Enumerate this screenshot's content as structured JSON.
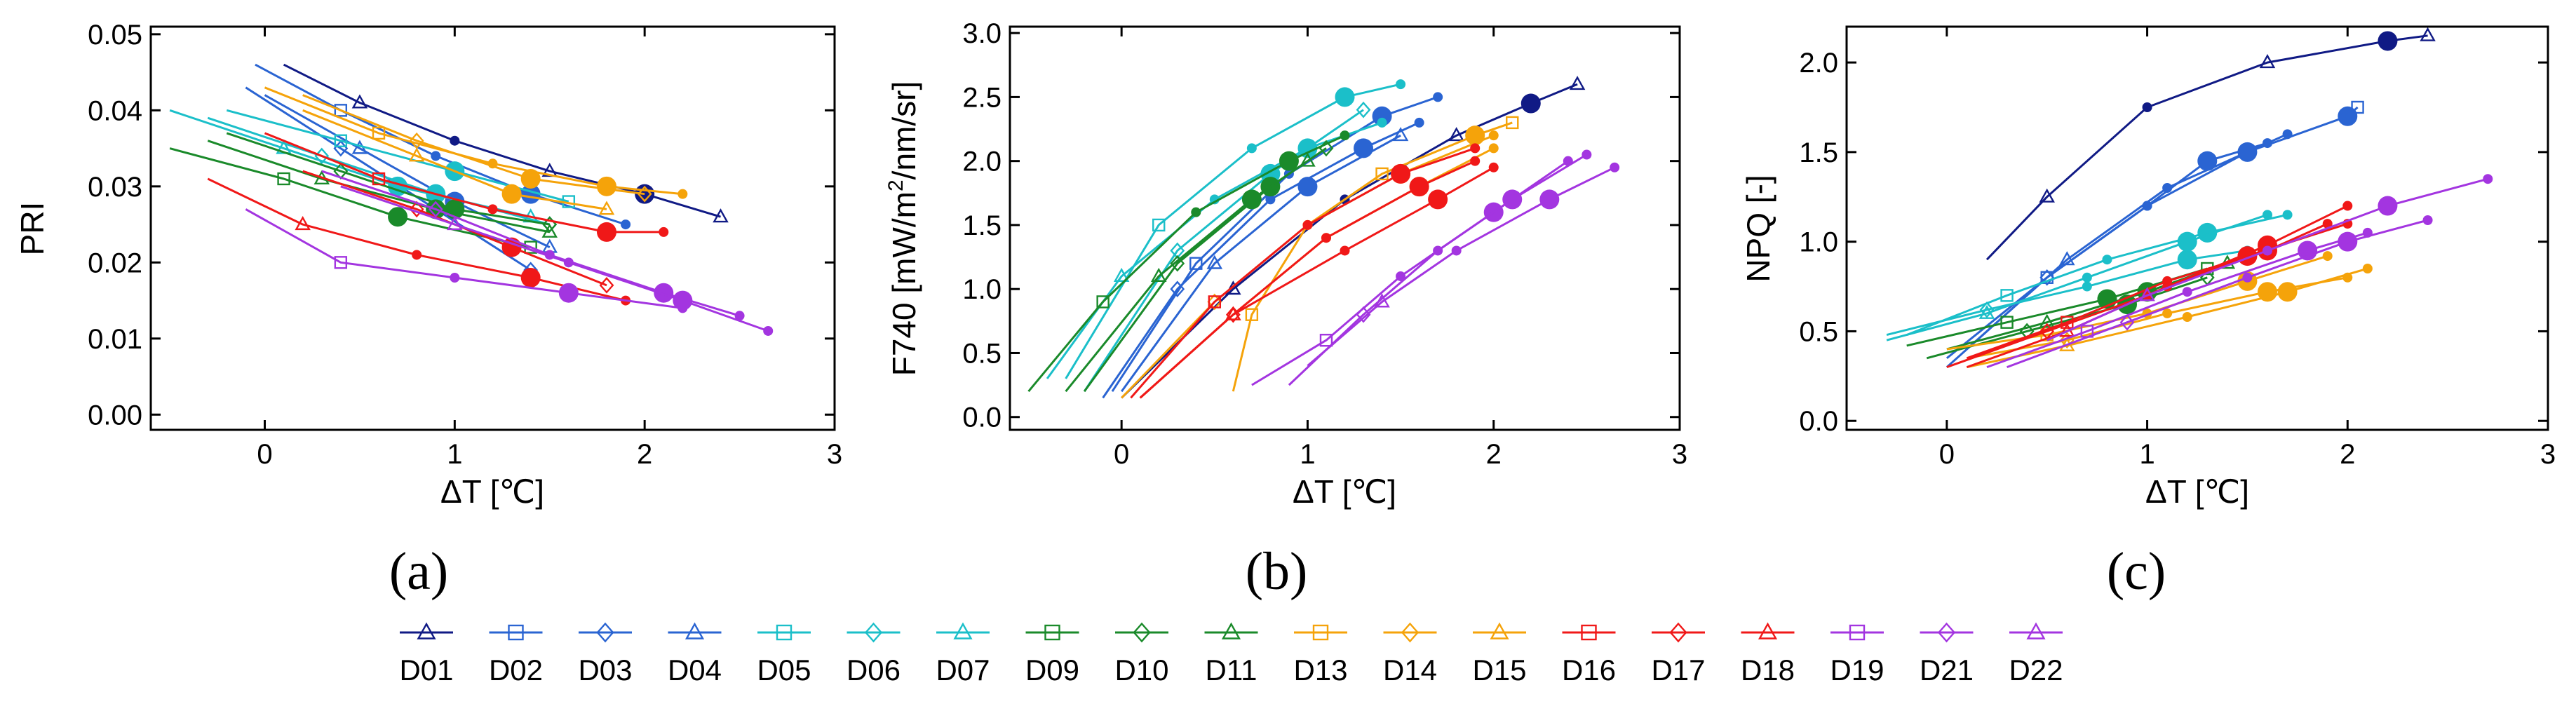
{
  "figure": {
    "legend": [
      {
        "name": "D01",
        "color": "#101a85",
        "marker": "triangle"
      },
      {
        "name": "D02",
        "color": "#2a64d2",
        "marker": "square"
      },
      {
        "name": "D03",
        "color": "#2a64d2",
        "marker": "diamond"
      },
      {
        "name": "D04",
        "color": "#2a64d2",
        "marker": "triangle"
      },
      {
        "name": "D05",
        "color": "#1bbfc9",
        "marker": "square"
      },
      {
        "name": "D06",
        "color": "#1bbfc9",
        "marker": "diamond"
      },
      {
        "name": "D07",
        "color": "#1bbfc9",
        "marker": "triangle"
      },
      {
        "name": "D09",
        "color": "#1a8a2a",
        "marker": "square"
      },
      {
        "name": "D10",
        "color": "#1a8a2a",
        "marker": "diamond"
      },
      {
        "name": "D11",
        "color": "#1a8a2a",
        "marker": "triangle"
      },
      {
        "name": "D13",
        "color": "#f5a30a",
        "marker": "square"
      },
      {
        "name": "D14",
        "color": "#f5a30a",
        "marker": "diamond"
      },
      {
        "name": "D15",
        "color": "#f5a30a",
        "marker": "triangle"
      },
      {
        "name": "D16",
        "color": "#f01818",
        "marker": "square"
      },
      {
        "name": "D17",
        "color": "#f01818",
        "marker": "diamond"
      },
      {
        "name": "D18",
        "color": "#f01818",
        "marker": "triangle"
      },
      {
        "name": "D19",
        "color": "#a335e0",
        "marker": "square"
      },
      {
        "name": "D21",
        "color": "#a335e0",
        "marker": "diamond"
      },
      {
        "name": "D22",
        "color": "#a335e0",
        "marker": "triangle"
      }
    ]
  },
  "chart_data": [
    {
      "panel": "(a)",
      "type": "line",
      "xlabel": "ΔT [℃]",
      "ylabel": "PRI",
      "xlim": [
        -0.6,
        3
      ],
      "ylim": [
        -0.002,
        0.051
      ],
      "xticks": [
        0,
        1,
        2,
        3
      ],
      "xtick_labels": [
        "0",
        "1",
        "2",
        "3"
      ],
      "yticks": [
        0.0,
        0.01,
        0.02,
        0.03,
        0.04,
        0.05
      ],
      "ytick_labels": [
        "0.00",
        "0.01",
        "0.02",
        "0.03",
        "0.04",
        "0.05"
      ],
      "series": [
        {
          "name": "D01",
          "x": [
            0.1,
            0.5,
            1.0,
            1.5,
            2.0,
            2.4
          ],
          "y": [
            0.046,
            0.041,
            0.036,
            0.032,
            0.029,
            0.026
          ]
        },
        {
          "name": "D02",
          "x": [
            -0.05,
            0.4,
            0.9,
            1.4,
            1.9
          ],
          "y": [
            0.046,
            0.04,
            0.034,
            0.029,
            0.025
          ]
        },
        {
          "name": "D03",
          "x": [
            -0.1,
            0.4,
            0.9,
            1.4
          ],
          "y": [
            0.043,
            0.035,
            0.027,
            0.019
          ]
        },
        {
          "name": "D04",
          "x": [
            0.0,
            0.5,
            1.0,
            1.5
          ],
          "y": [
            0.042,
            0.035,
            0.028,
            0.022
          ]
        },
        {
          "name": "D05",
          "x": [
            -0.2,
            0.4,
            1.0,
            1.6
          ],
          "y": [
            0.04,
            0.036,
            0.032,
            0.028
          ]
        },
        {
          "name": "D06",
          "x": [
            -0.3,
            0.3,
            0.9,
            1.5
          ],
          "y": [
            0.039,
            0.034,
            0.029,
            0.025
          ]
        },
        {
          "name": "D07",
          "x": [
            -0.5,
            0.1,
            0.7,
            1.4
          ],
          "y": [
            0.04,
            0.035,
            0.03,
            0.026
          ]
        },
        {
          "name": "D09",
          "x": [
            -0.5,
            0.1,
            0.7,
            1.4
          ],
          "y": [
            0.035,
            0.031,
            0.026,
            0.022
          ]
        },
        {
          "name": "D10",
          "x": [
            -0.2,
            0.4,
            1.0,
            1.5
          ],
          "y": [
            0.037,
            0.032,
            0.027,
            0.025
          ]
        },
        {
          "name": "D11",
          "x": [
            -0.3,
            0.3,
            0.9,
            1.5
          ],
          "y": [
            0.036,
            0.031,
            0.027,
            0.024
          ]
        },
        {
          "name": "D13",
          "x": [
            0.0,
            0.6,
            1.2,
            1.8,
            2.2
          ],
          "y": [
            0.043,
            0.037,
            0.033,
            0.03,
            0.029
          ]
        },
        {
          "name": "D14",
          "x": [
            0.2,
            0.8,
            1.4,
            2.0
          ],
          "y": [
            0.042,
            0.036,
            0.031,
            0.029
          ]
        },
        {
          "name": "D15",
          "x": [
            0.2,
            0.8,
            1.3,
            1.8
          ],
          "y": [
            0.04,
            0.034,
            0.029,
            0.027
          ]
        },
        {
          "name": "D16",
          "x": [
            0.0,
            0.6,
            1.2,
            1.8,
            2.1
          ],
          "y": [
            0.037,
            0.031,
            0.027,
            0.024,
            0.024
          ]
        },
        {
          "name": "D17",
          "x": [
            0.2,
            0.8,
            1.3,
            1.8
          ],
          "y": [
            0.032,
            0.027,
            0.022,
            0.017
          ]
        },
        {
          "name": "D18",
          "x": [
            -0.3,
            0.2,
            0.8,
            1.4,
            1.9
          ],
          "y": [
            0.031,
            0.025,
            0.021,
            0.018,
            0.015
          ]
        },
        {
          "name": "D19",
          "x": [
            -0.1,
            0.4,
            1.0,
            1.6,
            2.2
          ],
          "y": [
            0.027,
            0.02,
            0.018,
            0.016,
            0.014
          ]
        },
        {
          "name": "D21",
          "x": [
            0.3,
            0.9,
            1.5,
            2.1,
            2.5
          ],
          "y": [
            0.032,
            0.027,
            0.021,
            0.016,
            0.013
          ]
        },
        {
          "name": "D22",
          "x": [
            0.4,
            1.0,
            1.6,
            2.2,
            2.65
          ],
          "y": [
            0.03,
            0.025,
            0.02,
            0.015,
            0.011
          ]
        }
      ]
    },
    {
      "panel": "(b)",
      "type": "line",
      "xlabel": "ΔT [℃]",
      "ylabel": "F740 [mW/m²/nm/sr]",
      "ylabel_main": "F740 [mW/m",
      "ylabel_sup": "2",
      "ylabel_tail": "/nm/sr]",
      "xlim": [
        -0.6,
        3
      ],
      "ylim": [
        -0.1,
        3.05
      ],
      "xticks": [
        0,
        1,
        2,
        3
      ],
      "xtick_labels": [
        "0",
        "1",
        "2",
        "3"
      ],
      "yticks": [
        0.0,
        0.5,
        1.0,
        1.5,
        2.0,
        2.5,
        3.0
      ],
      "ytick_labels": [
        "0.0",
        "0.5",
        "1.0",
        "1.5",
        "2.0",
        "2.5",
        "3.0"
      ],
      "series": [
        {
          "name": "D01",
          "x": [
            0.0,
            0.6,
            1.2,
            1.8,
            2.2,
            2.45
          ],
          "y": [
            0.15,
            1.0,
            1.7,
            2.2,
            2.45,
            2.6
          ]
        },
        {
          "name": "D02",
          "x": [
            -0.05,
            0.4,
            0.9,
            1.4,
            1.7
          ],
          "y": [
            0.2,
            1.2,
            1.9,
            2.35,
            2.5
          ]
        },
        {
          "name": "D03",
          "x": [
            -0.1,
            0.3,
            0.8,
            1.3,
            1.6
          ],
          "y": [
            0.15,
            1.0,
            1.7,
            2.1,
            2.3
          ]
        },
        {
          "name": "D04",
          "x": [
            0.0,
            0.5,
            1.0,
            1.5
          ],
          "y": [
            0.2,
            1.2,
            1.8,
            2.2
          ]
        },
        {
          "name": "D05",
          "x": [
            -0.3,
            0.2,
            0.7,
            1.2,
            1.5
          ],
          "y": [
            0.3,
            1.5,
            2.1,
            2.5,
            2.6
          ]
        },
        {
          "name": "D06",
          "x": [
            -0.2,
            0.3,
            0.8,
            1.3
          ],
          "y": [
            0.2,
            1.3,
            1.9,
            2.4
          ]
        },
        {
          "name": "D07",
          "x": [
            -0.4,
            0.0,
            0.5,
            1.0,
            1.4
          ],
          "y": [
            0.3,
            1.1,
            1.7,
            2.1,
            2.3
          ]
        },
        {
          "name": "D09",
          "x": [
            -0.5,
            -0.1,
            0.4,
            0.9,
            1.2
          ],
          "y": [
            0.2,
            0.9,
            1.6,
            2.0,
            2.2
          ]
        },
        {
          "name": "D10",
          "x": [
            -0.2,
            0.3,
            0.8,
            1.1
          ],
          "y": [
            0.2,
            1.2,
            1.8,
            2.1
          ]
        },
        {
          "name": "D11",
          "x": [
            -0.3,
            0.2,
            0.7,
            1.0
          ],
          "y": [
            0.2,
            1.1,
            1.7,
            2.0
          ]
        },
        {
          "name": "D13",
          "x": [
            0.6,
            0.7,
            1.0,
            1.4,
            1.9,
            2.1
          ],
          "y": [
            0.2,
            0.8,
            1.5,
            1.9,
            2.2,
            2.3
          ]
        },
        {
          "name": "D14",
          "x": [
            0.0,
            0.5,
            1.0,
            1.5,
            2.0
          ],
          "y": [
            0.15,
            0.9,
            1.5,
            1.9,
            2.2
          ]
        },
        {
          "name": "D15",
          "x": [
            0.1,
            0.6,
            1.1,
            1.6,
            2.0
          ],
          "y": [
            0.15,
            0.8,
            1.4,
            1.8,
            2.1
          ]
        },
        {
          "name": "D16",
          "x": [
            0.05,
            0.5,
            1.0,
            1.5,
            1.9
          ],
          "y": [
            0.15,
            0.9,
            1.5,
            1.9,
            2.1
          ]
        },
        {
          "name": "D17",
          "x": [
            0.1,
            0.6,
            1.1,
            1.6,
            1.9
          ],
          "y": [
            0.15,
            0.8,
            1.4,
            1.8,
            2.0
          ]
        },
        {
          "name": "D18",
          "x": [
            0.1,
            0.6,
            1.2,
            1.7,
            2.0
          ],
          "y": [
            0.15,
            0.8,
            1.3,
            1.7,
            1.95
          ]
        },
        {
          "name": "D19",
          "x": [
            0.7,
            1.1,
            1.5,
            2.0,
            2.4
          ],
          "y": [
            0.25,
            0.6,
            1.1,
            1.6,
            2.0
          ]
        },
        {
          "name": "D21",
          "x": [
            0.9,
            1.3,
            1.7,
            2.1,
            2.5
          ],
          "y": [
            0.25,
            0.8,
            1.3,
            1.7,
            2.05
          ]
        },
        {
          "name": "D22",
          "x": [
            1.0,
            1.4,
            1.8,
            2.3,
            2.65
          ],
          "y": [
            0.4,
            0.9,
            1.3,
            1.7,
            1.95
          ]
        }
      ]
    },
    {
      "panel": "(c)",
      "type": "line",
      "xlabel": "ΔT [℃]",
      "ylabel": "NPQ [-]",
      "xlim": [
        -0.5,
        3
      ],
      "ylim": [
        -0.05,
        2.2
      ],
      "xticks": [
        0,
        1,
        2,
        3
      ],
      "xtick_labels": [
        "0",
        "1",
        "2",
        "3"
      ],
      "yticks": [
        0.0,
        0.5,
        1.0,
        1.5,
        2.0
      ],
      "ytick_labels": [
        "0.0",
        "0.5",
        "1.0",
        "1.5",
        "2.0"
      ],
      "series": [
        {
          "name": "D01",
          "x": [
            0.2,
            0.5,
            1.0,
            1.6,
            2.2,
            2.4
          ],
          "y": [
            0.9,
            1.25,
            1.75,
            2.0,
            2.12,
            2.15
          ]
        },
        {
          "name": "D02",
          "x": [
            0.0,
            0.5,
            1.0,
            1.5,
            2.0,
            2.05
          ],
          "y": [
            0.3,
            0.8,
            1.2,
            1.5,
            1.7,
            1.75
          ]
        },
        {
          "name": "D03",
          "x": [
            0.0,
            0.5,
            1.0,
            1.3,
            1.6
          ],
          "y": [
            0.35,
            0.8,
            1.2,
            1.45,
            1.55
          ]
        },
        {
          "name": "D04",
          "x": [
            0.1,
            0.6,
            1.1,
            1.5,
            1.7
          ],
          "y": [
            0.4,
            0.9,
            1.3,
            1.5,
            1.6
          ]
        },
        {
          "name": "D05",
          "x": [
            -0.2,
            0.3,
            0.8,
            1.3,
            1.7
          ],
          "y": [
            0.48,
            0.7,
            0.9,
            1.05,
            1.15
          ]
        },
        {
          "name": "D06",
          "x": [
            -0.3,
            0.2,
            0.7,
            1.2,
            1.5
          ],
          "y": [
            0.48,
            0.62,
            0.75,
            0.9,
            0.95
          ]
        },
        {
          "name": "D07",
          "x": [
            -0.3,
            0.2,
            0.7,
            1.2,
            1.6
          ],
          "y": [
            0.45,
            0.6,
            0.8,
            1.0,
            1.15
          ]
        },
        {
          "name": "D09",
          "x": [
            -0.2,
            0.3,
            0.8,
            1.3
          ],
          "y": [
            0.42,
            0.55,
            0.68,
            0.85
          ]
        },
        {
          "name": "D10",
          "x": [
            -0.1,
            0.4,
            0.9,
            1.3
          ],
          "y": [
            0.35,
            0.5,
            0.65,
            0.8
          ]
        },
        {
          "name": "D11",
          "x": [
            0.0,
            0.5,
            1.0,
            1.4
          ],
          "y": [
            0.4,
            0.55,
            0.72,
            0.88
          ]
        },
        {
          "name": "D13",
          "x": [
            0.0,
            0.5,
            1.0,
            1.5,
            1.9
          ],
          "y": [
            0.4,
            0.48,
            0.6,
            0.78,
            0.92
          ]
        },
        {
          "name": "D14",
          "x": [
            0.1,
            0.6,
            1.1,
            1.6,
            2.0
          ],
          "y": [
            0.35,
            0.45,
            0.6,
            0.72,
            0.8
          ]
        },
        {
          "name": "D15",
          "x": [
            0.1,
            0.6,
            1.2,
            1.7,
            2.1
          ],
          "y": [
            0.3,
            0.42,
            0.58,
            0.72,
            0.85
          ]
        },
        {
          "name": "D16",
          "x": [
            0.1,
            0.6,
            1.1,
            1.6,
            1.9
          ],
          "y": [
            0.35,
            0.55,
            0.78,
            0.95,
            1.1
          ]
        },
        {
          "name": "D17",
          "x": [
            0.0,
            0.5,
            1.0,
            1.5,
            2.0
          ],
          "y": [
            0.3,
            0.5,
            0.7,
            0.92,
            1.1
          ]
        },
        {
          "name": "D18",
          "x": [
            0.1,
            0.6,
            1.1,
            1.6,
            2.0
          ],
          "y": [
            0.3,
            0.5,
            0.75,
            0.98,
            1.2
          ]
        },
        {
          "name": "D19",
          "x": [
            0.2,
            0.7,
            1.2,
            1.8,
            2.1
          ],
          "y": [
            0.3,
            0.5,
            0.72,
            0.95,
            1.05
          ]
        },
        {
          "name": "D21",
          "x": [
            0.3,
            0.9,
            1.5,
            2.0,
            2.4
          ],
          "y": [
            0.3,
            0.55,
            0.8,
            1.0,
            1.12
          ]
        },
        {
          "name": "D22",
          "x": [
            0.5,
            1.0,
            1.6,
            2.2,
            2.7
          ],
          "y": [
            0.45,
            0.7,
            0.95,
            1.2,
            1.35
          ]
        }
      ]
    }
  ]
}
